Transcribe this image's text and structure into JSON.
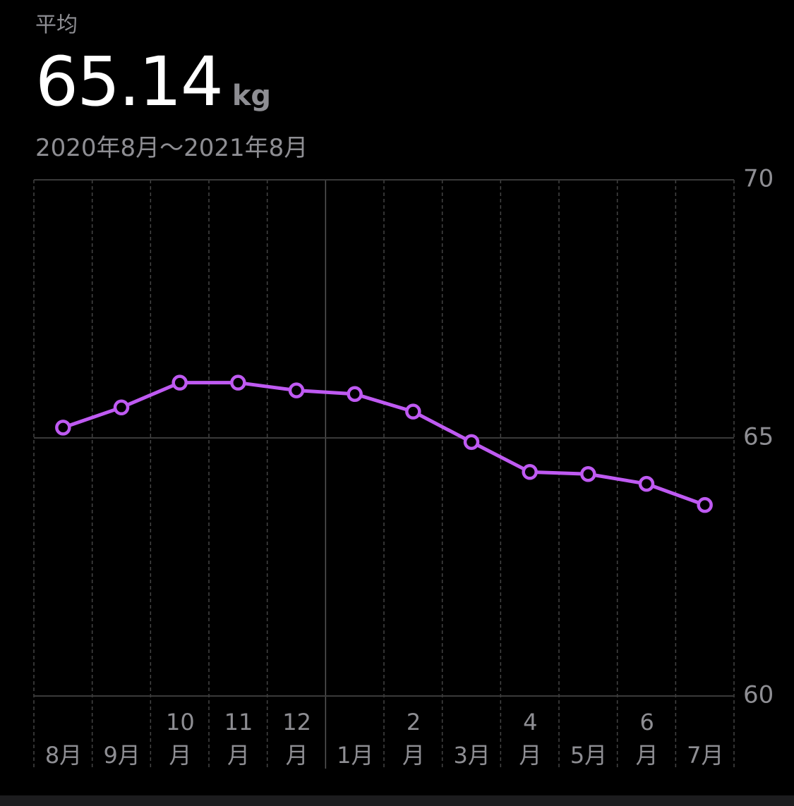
{
  "header": {
    "label": "平均",
    "value": "65.14",
    "unit": "kg",
    "range": "2020年8月〜2021年8月"
  },
  "chart_data": {
    "type": "line",
    "categories": [
      "8月",
      "9月",
      "10\n月",
      "11\n月",
      "12\n月",
      "1月",
      "2\n月",
      "3月",
      "4\n月",
      "5月",
      "6\n月",
      "7月"
    ],
    "values": [
      65.2,
      65.59,
      66.07,
      66.07,
      65.92,
      65.85,
      65.51,
      64.92,
      64.34,
      64.3,
      64.11,
      63.7
    ],
    "color": "#bf5af2",
    "ylim": [
      60,
      70
    ],
    "yticks": [
      60,
      65,
      70
    ],
    "grid": true
  }
}
